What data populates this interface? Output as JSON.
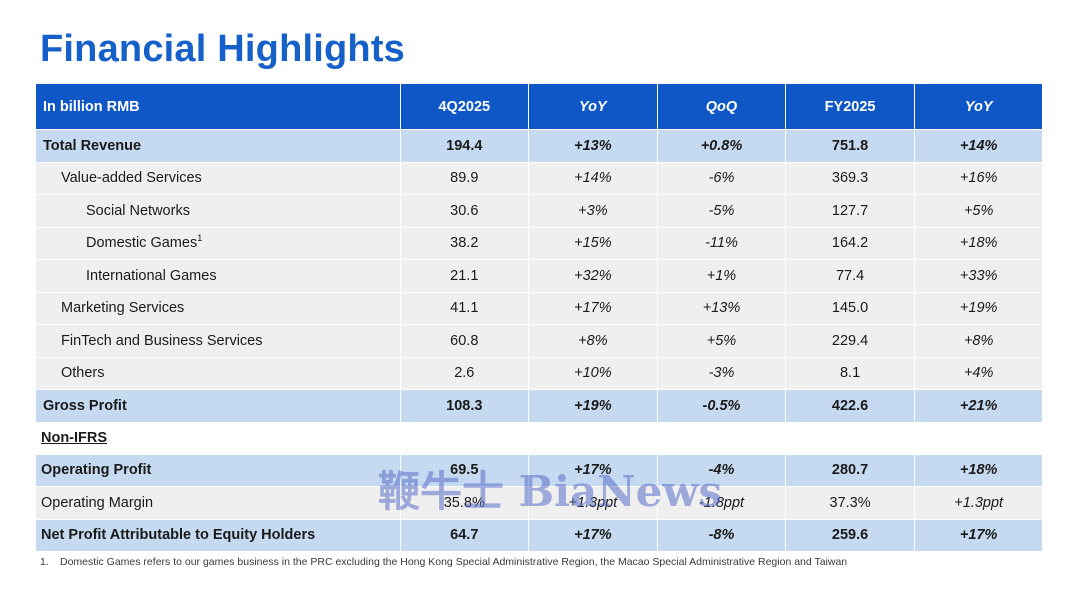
{
  "title": "Financial Highlights",
  "header": {
    "label": "In billion RMB",
    "cols": [
      "4Q2025",
      "YoY",
      "QoQ",
      "FY2025",
      "YoY"
    ]
  },
  "rows": [
    {
      "label": "Total Revenue",
      "sup": "",
      "v": [
        "194.4",
        "+13%",
        "+0.8%",
        "751.8",
        "+14%"
      ]
    },
    {
      "label": "Value-added Services",
      "sup": "",
      "v": [
        "89.9",
        "+14%",
        "-6%",
        "369.3",
        "+16%"
      ]
    },
    {
      "label": "Social Networks",
      "sup": "",
      "v": [
        "30.6",
        "+3%",
        "-5%",
        "127.7",
        "+5%"
      ]
    },
    {
      "label": "Domestic Games",
      "sup": "1",
      "v": [
        "38.2",
        "+15%",
        "-11%",
        "164.2",
        "+18%"
      ]
    },
    {
      "label": "International Games",
      "sup": "",
      "v": [
        "21.1",
        "+32%",
        "+1%",
        "77.4",
        "+33%"
      ]
    },
    {
      "label": "Marketing Services",
      "sup": "",
      "v": [
        "41.1",
        "+17%",
        "+13%",
        "145.0",
        "+19%"
      ]
    },
    {
      "label": "FinTech and Business Services",
      "sup": "",
      "v": [
        "60.8",
        "+8%",
        "+5%",
        "229.4",
        "+8%"
      ]
    },
    {
      "label": "Others",
      "sup": "",
      "v": [
        "2.6",
        "+10%",
        "-3%",
        "8.1",
        "+4%"
      ]
    },
    {
      "label": "Gross Profit",
      "sup": "",
      "v": [
        "108.3",
        "+19%",
        "-0.5%",
        "422.6",
        "+21%"
      ]
    },
    {
      "label": "Non-IFRS",
      "sup": "",
      "v": [
        "",
        "",
        "",
        "",
        ""
      ]
    },
    {
      "label": "Operating Profit",
      "sup": "",
      "v": [
        "69.5",
        "+17%",
        "-4%",
        "280.7",
        "+18%"
      ]
    },
    {
      "label": "Operating Margin",
      "sup": "",
      "v": [
        "35.8%",
        "+1.3ppt",
        "-1.8ppt",
        "37.3%",
        "+1.3ppt"
      ]
    },
    {
      "label": "Net Profit Attributable to Equity Holders",
      "sup": "",
      "v": [
        "64.7",
        "+17%",
        "-8%",
        "259.6",
        "+17%"
      ]
    }
  ],
  "footnote": {
    "num": "1.",
    "text": "Domestic Games refers to our games business in the PRC excluding the Hong Kong Special Administrative Region, the Macao Special Administrative Region and Taiwan"
  },
  "watermark": "鞭牛士 BiaNews"
}
